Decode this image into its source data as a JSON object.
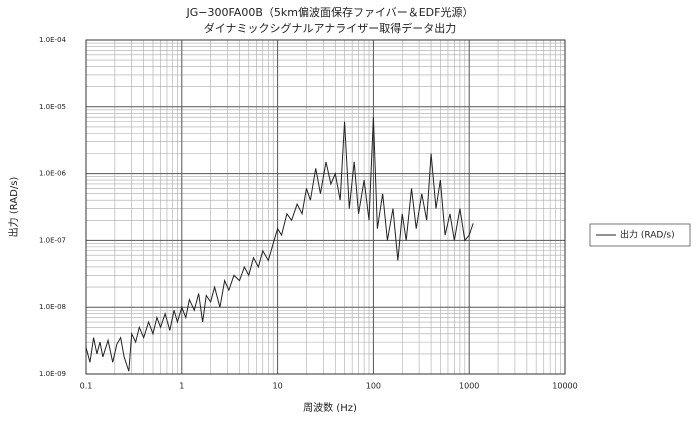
{
  "chart_data": {
    "type": "line",
    "title": "JG−300FA00B（5km偏波面保存ファイバー＆EDF光源）",
    "subtitle": "ダイナミックシグナルアナライザー取得データ出力",
    "x_label": "周波数 (Hz)",
    "y_label": "出力 (RAD/s)",
    "xscale": "log",
    "yscale": "log",
    "grid": true,
    "minor_grid": true,
    "legend": "right",
    "x": [
      0.1,
      0.11,
      0.12,
      0.13,
      0.14,
      0.15,
      0.17,
      0.19,
      0.21,
      0.23,
      0.25,
      0.28,
      0.3,
      0.33,
      0.36,
      0.4,
      0.45,
      0.5,
      0.55,
      0.6,
      0.67,
      0.75,
      0.83,
      0.9,
      1,
      1.1,
      1.2,
      1.35,
      1.5,
      1.65,
      1.8,
      2,
      2.2,
      2.5,
      2.8,
      3.1,
      3.5,
      4,
      4.5,
      5,
      5.6,
      6.3,
      7,
      8,
      9,
      10,
      11,
      12.5,
      14,
      16,
      18,
      20,
      22,
      25,
      28,
      32,
      36,
      40,
      45,
      50,
      56,
      63,
      70,
      80,
      90,
      100,
      110,
      125,
      140,
      160,
      180,
      200,
      220,
      250,
      280,
      320,
      360,
      400,
      450,
      500,
      560,
      630,
      700,
      800,
      900,
      1000,
      1100
    ],
    "series": [
      {
        "name": "出力 (RAD/s)",
        "color": "#222222",
        "values": [
          2.5e-09,
          1.5e-09,
          3.5e-09,
          2e-09,
          3e-09,
          1.8e-09,
          3.2e-09,
          1.5e-09,
          2.8e-09,
          3.5e-09,
          1.8e-09,
          1.1e-09,
          4e-09,
          3e-09,
          5e-09,
          3.5e-09,
          6e-09,
          4e-09,
          7e-09,
          5e-09,
          8e-09,
          4.5e-09,
          9e-09,
          6e-09,
          1e-08,
          7e-09,
          1.3e-08,
          9e-09,
          1.6e-08,
          6e-09,
          1.5e-08,
          1.2e-08,
          2e-08,
          1e-08,
          2.5e-08,
          1.8e-08,
          3e-08,
          2.5e-08,
          4e-08,
          3e-08,
          5.5e-08,
          4e-08,
          7e-08,
          5e-08,
          9e-08,
          1.5e-07,
          1.2e-07,
          2.5e-07,
          2e-07,
          3.5e-07,
          2.5e-07,
          6e-07,
          4e-07,
          1.2e-06,
          5e-07,
          1.5e-06,
          7e-07,
          1e-06,
          4e-07,
          6e-06,
          3e-07,
          1.5e-06,
          2.5e-07,
          8e-07,
          2e-07,
          7e-06,
          1.5e-07,
          5e-07,
          1e-07,
          3e-07,
          5e-08,
          2.5e-07,
          1e-07,
          6e-07,
          1.5e-07,
          5e-07,
          2e-07,
          2e-06,
          3e-07,
          8e-07,
          1.2e-07,
          2.5e-07,
          1e-07,
          3e-07,
          1e-07,
          1.2e-07,
          1.8e-07
        ]
      }
    ],
    "xlim": [
      0.1,
      10000
    ],
    "xticks": [
      0.1,
      1,
      10,
      100,
      1000,
      10000
    ],
    "ylim": [
      1e-09,
      0.0001
    ],
    "yticks": [
      {
        "value": 1e-09,
        "label": "1.0E-09"
      },
      {
        "value": 1e-08,
        "label": "1.0E-08"
      },
      {
        "value": 1e-07,
        "label": "1.0E-07"
      },
      {
        "value": 1e-06,
        "label": "1.0E-06"
      },
      {
        "value": 1e-05,
        "label": "1.0E-05"
      },
      {
        "value": 0.0001,
        "label": "1.0E-04"
      }
    ]
  }
}
